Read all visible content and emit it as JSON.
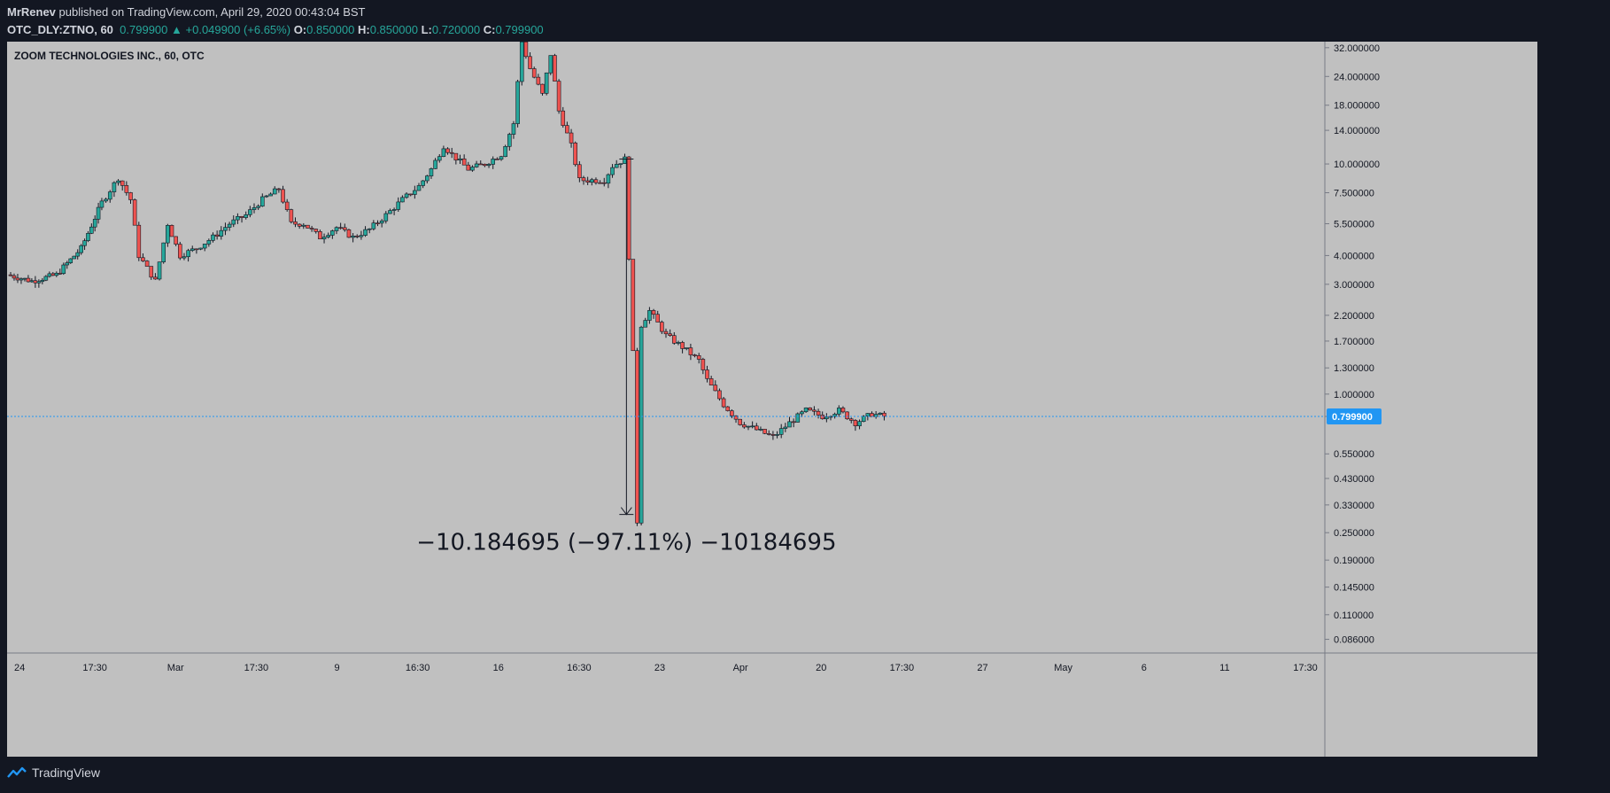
{
  "header": {
    "author": "MrRenev",
    "published_text": "published on TradingView.com, April 29, 2020 00:43:04 BST",
    "symbol_line": {
      "symbol": "OTC_DLY:ZTNO, 60",
      "last": "0.799900",
      "arrow": "▲",
      "change": "+0.049900 (+6.65%)",
      "o_label": "O:",
      "o": "0.850000",
      "h_label": "H:",
      "h": "0.850000",
      "l_label": "L:",
      "l": "0.720000",
      "c_label": "C:",
      "c": "0.799900"
    }
  },
  "chart_title": "ZOOM TECHNOLOGIES INC., 60, OTC",
  "footer": {
    "brand": "TradingView"
  },
  "colors": {
    "background": "#c0c0c0",
    "up": "#26a69a",
    "down": "#ef5350",
    "accent": "#2196f3",
    "page": "#131722"
  },
  "chart_data": {
    "type": "candlestick",
    "y_scale": "log",
    "ylim": [
      0.075,
      34
    ],
    "y_ticks": [
      "32.000000",
      "24.000000",
      "18.000000",
      "14.000000",
      "10.000000",
      "7.500000",
      "5.500000",
      "4.000000",
      "3.000000",
      "2.200000",
      "1.700000",
      "1.300000",
      "1.000000",
      "0.799900",
      "0.550000",
      "0.430000",
      "0.330000",
      "0.250000",
      "0.190000",
      "0.145000",
      "0.110000",
      "0.086000"
    ],
    "x_ticks": [
      "24",
      "17:30",
      "Mar",
      "17:30",
      "9",
      "16:30",
      "16",
      "16:30",
      "23",
      "Apr",
      "20",
      "17:30",
      "27",
      "May",
      "6",
      "11",
      "17:30"
    ],
    "last_price": 0.7999,
    "last_price_label": "0.799900",
    "measure": {
      "from": 10.5,
      "to": 0.3,
      "label": "−10.184695 (−97.11%) −10184695"
    },
    "price_path": [
      [
        0,
        3.3
      ],
      [
        3,
        3.1
      ],
      [
        6,
        3.3
      ],
      [
        9,
        4.3
      ],
      [
        11.5,
        6.8
      ],
      [
        13.5,
        8.7
      ],
      [
        15,
        7.0
      ],
      [
        16,
        4.0
      ],
      [
        18,
        3.1
      ],
      [
        19.5,
        5.5
      ],
      [
        21,
        4.0
      ],
      [
        23,
        4.3
      ],
      [
        25,
        4.8
      ],
      [
        27,
        5.5
      ],
      [
        29,
        6.0
      ],
      [
        31,
        7.0
      ],
      [
        33,
        7.8
      ],
      [
        34.5,
        5.5
      ],
      [
        36,
        5.5
      ],
      [
        38,
        4.8
      ],
      [
        40,
        5.3
      ],
      [
        42,
        4.8
      ],
      [
        44,
        5.2
      ],
      [
        46,
        6.0
      ],
      [
        48,
        7.0
      ],
      [
        50,
        8.0
      ],
      [
        51.5,
        9.5
      ],
      [
        53,
        12.0
      ],
      [
        54,
        11.0
      ],
      [
        56,
        9.5
      ],
      [
        58,
        10.0
      ],
      [
        60,
        11.0
      ],
      [
        61.5,
        15.0
      ],
      [
        62.5,
        34.0
      ],
      [
        63.5,
        26.0
      ],
      [
        65,
        20.0
      ],
      [
        66,
        30.0
      ],
      [
        67,
        17.0
      ],
      [
        68.5,
        12.0
      ],
      [
        69.5,
        8.5
      ],
      [
        71,
        8.5
      ],
      [
        72.5,
        8.5
      ],
      [
        73.5,
        9.8
      ],
      [
        75,
        10.5
      ],
      [
        76,
        1.5
      ],
      [
        76.5,
        0.28
      ],
      [
        77,
        2.0
      ],
      [
        78,
        2.3
      ],
      [
        80,
        1.8
      ],
      [
        82,
        1.6
      ],
      [
        84,
        1.4
      ],
      [
        85,
        1.15
      ],
      [
        87,
        0.9
      ],
      [
        89,
        0.75
      ],
      [
        91,
        0.7
      ],
      [
        93,
        0.65
      ],
      [
        95,
        0.75
      ],
      [
        97,
        0.85
      ],
      [
        99,
        0.8
      ],
      [
        101,
        0.85
      ],
      [
        103,
        0.75
      ],
      [
        105,
        0.82
      ],
      [
        106.5,
        0.8
      ]
    ],
    "x_domain": [
      0,
      160
    ]
  }
}
